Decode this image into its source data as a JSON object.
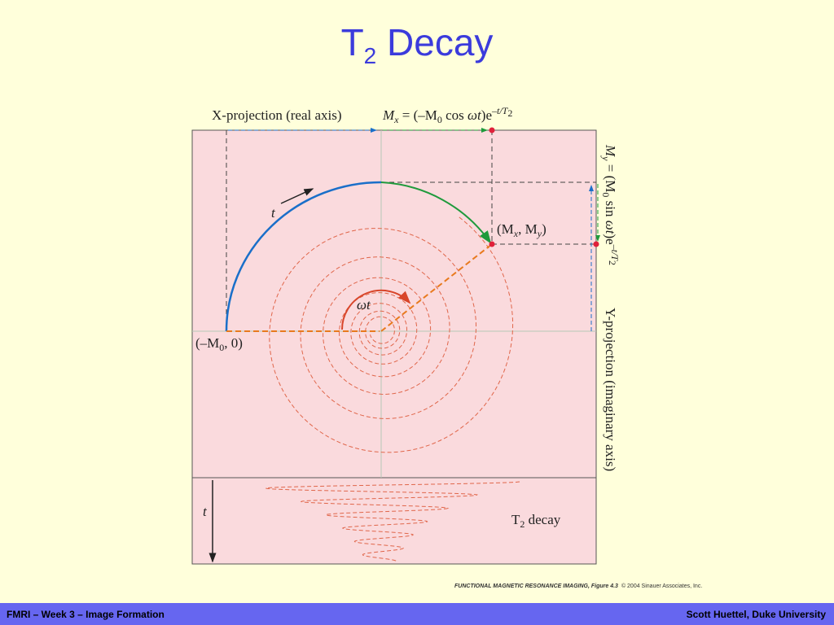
{
  "title": {
    "main": "T",
    "sub": "2",
    "rest": " Decay"
  },
  "diagram": {
    "x_projection": "X-projection (real axis)",
    "x_formula": [
      "M",
      "x",
      " = (–M",
      "0",
      " cos ",
      "ωt",
      ")e",
      "–t/T",
      "2"
    ],
    "y_formula": [
      "M",
      "y",
      " = (M",
      "0",
      " sin ",
      "ωt",
      ")e",
      "–t/T",
      "2"
    ],
    "y_projection": "Y-projection (imaginary axis)",
    "point_label": [
      "(M",
      "x",
      ", M",
      "y",
      ")"
    ],
    "origin_label": [
      "(–M",
      "0",
      ", 0)"
    ],
    "angle_label": "ωt",
    "arc_time_label": "t",
    "time_axis_label": "t",
    "decay_label": [
      "T",
      "2",
      " decay"
    ]
  },
  "credit": {
    "book": "FUNCTIONAL MAGNETIC RESONANCE IMAGING, Figure 4.3",
    "copyright": "© 2004 Sinauer Associates, Inc."
  },
  "footer": {
    "left": "FMRI – Week 3 – Image Formation",
    "right": "Scott Huettel, Duke University"
  }
}
